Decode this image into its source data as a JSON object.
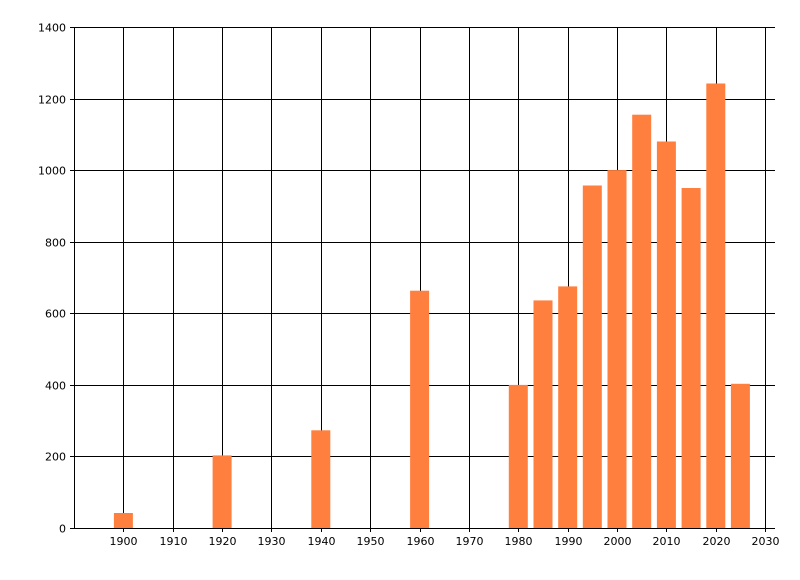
{
  "chart_data": {
    "type": "bar",
    "title": "",
    "xlabel": "",
    "ylabel": "",
    "xlim": [
      1890,
      2032
    ],
    "ylim": [
      0,
      1400
    ],
    "x_ticks": [
      1900,
      1910,
      1920,
      1930,
      1940,
      1950,
      1960,
      1970,
      1980,
      1990,
      2000,
      2010,
      2020,
      2030
    ],
    "y_ticks": [
      0,
      200,
      400,
      600,
      800,
      1000,
      1200,
      1400
    ],
    "grid": true,
    "bar_color": "#ff7f3f",
    "x": [
      1900,
      1920,
      1940,
      1960,
      1980,
      1985,
      1990,
      1995,
      2000,
      2005,
      2010,
      2015,
      2020,
      2025
    ],
    "values": [
      42,
      203,
      273,
      663,
      400,
      636,
      675,
      957,
      1000,
      1155,
      1080,
      950,
      1242,
      403
    ]
  }
}
